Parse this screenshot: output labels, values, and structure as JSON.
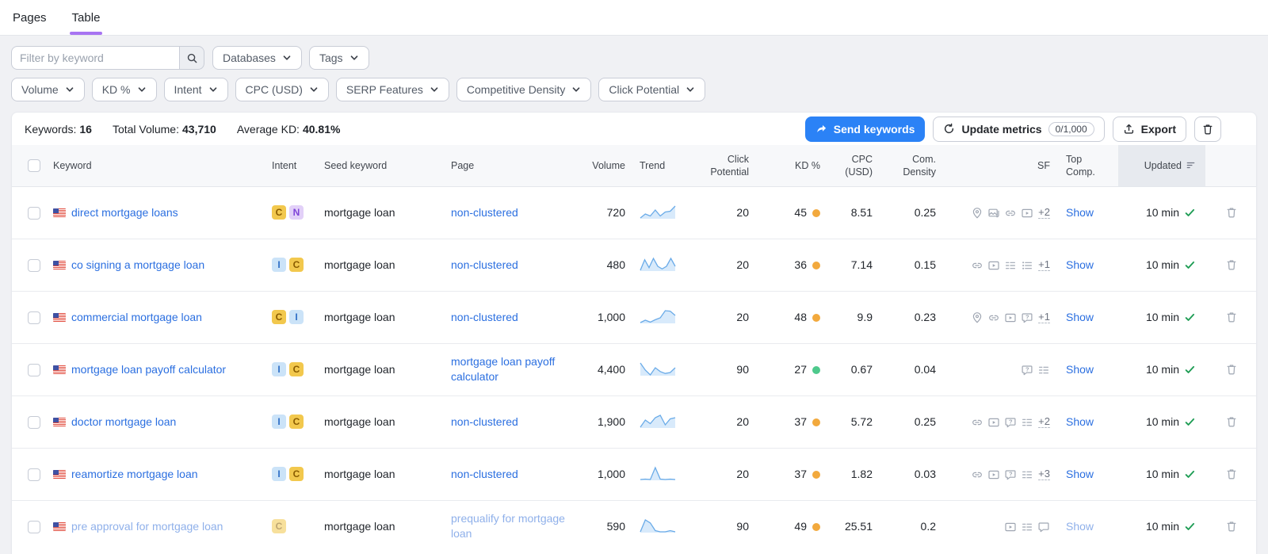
{
  "tabs": {
    "items": [
      {
        "label": "Pages",
        "active": false
      },
      {
        "label": "Table",
        "active": true
      }
    ]
  },
  "filters": {
    "search_placeholder": "Filter by keyword",
    "top_chips": [
      "Databases",
      "Tags"
    ],
    "metric_chips": [
      "Volume",
      "KD %",
      "Intent",
      "CPC (USD)",
      "SERP Features",
      "Competitive Density",
      "Click Potential"
    ]
  },
  "summary": {
    "keywords_label": "Keywords:",
    "keywords_value": "16",
    "total_volume_label": "Total Volume:",
    "total_volume_value": "43,710",
    "average_kd_label": "Average KD:",
    "average_kd_value": "40.81%"
  },
  "actions": {
    "send_keywords": "Send keywords",
    "update_metrics": "Update metrics",
    "update_quota": "0/1,000",
    "export": "Export"
  },
  "table": {
    "columns": [
      "Keyword",
      "Intent",
      "Seed keyword",
      "Page",
      "Volume",
      "Trend",
      "Click Potential",
      "KD %",
      "CPC (USD)",
      "Com. Density",
      "SF",
      "Top Comp.",
      "Updated"
    ],
    "sorted_column": "Updated",
    "rows": [
      {
        "keyword": "direct mortgage loans",
        "flag": "us",
        "intents": [
          {
            "label": "C",
            "type": "commercial"
          },
          {
            "label": "N",
            "type": "navigational"
          }
        ],
        "seed": "mortgage loan",
        "page": "non-clustered",
        "volume": "720",
        "trend": [
          4.5,
          5.5,
          5,
          6.5,
          5,
          6,
          6.2,
          7.5
        ],
        "click_potential": "20",
        "kd": "45",
        "kd_level": "medium",
        "cpc": "8.51",
        "density": "0.25",
        "sf_icons": [
          "local-pack",
          "image",
          "link",
          "video"
        ],
        "sf_more": "+2",
        "top_comp": "Show",
        "updated": "10 min",
        "dim": false
      },
      {
        "keyword": "co signing a mortgage loan",
        "flag": "us",
        "intents": [
          {
            "label": "I",
            "type": "informational"
          },
          {
            "label": "C",
            "type": "commercial"
          }
        ],
        "seed": "mortgage loan",
        "page": "non-clustered",
        "volume": "480",
        "trend": [
          3,
          7,
          4,
          7.5,
          4.5,
          3.5,
          4.5,
          7.5,
          4.5
        ],
        "click_potential": "20",
        "kd": "36",
        "kd_level": "medium",
        "cpc": "7.14",
        "density": "0.15",
        "sf_icons": [
          "link",
          "video",
          "sitelinks",
          "list"
        ],
        "sf_more": "+1",
        "top_comp": "Show",
        "updated": "10 min",
        "dim": false
      },
      {
        "keyword": "commercial mortgage loan",
        "flag": "us",
        "intents": [
          {
            "label": "C",
            "type": "commercial"
          },
          {
            "label": "I",
            "type": "informational"
          }
        ],
        "seed": "mortgage loan",
        "page": "non-clustered",
        "volume": "1,000",
        "trend": [
          3,
          4,
          3.2,
          4.2,
          5,
          8,
          7.8,
          6
        ],
        "click_potential": "20",
        "kd": "48",
        "kd_level": "medium",
        "cpc": "9.9",
        "density": "0.23",
        "sf_icons": [
          "local-pack",
          "link",
          "video",
          "faq"
        ],
        "sf_more": "+1",
        "top_comp": "Show",
        "updated": "10 min",
        "dim": false
      },
      {
        "keyword": "mortgage loan payoff calculator",
        "flag": "us",
        "intents": [
          {
            "label": "I",
            "type": "informational"
          },
          {
            "label": "C",
            "type": "commercial"
          }
        ],
        "seed": "mortgage loan",
        "page": "mortgage loan payoff calculator",
        "volume": "4,400",
        "trend": [
          6,
          4.5,
          3.5,
          5,
          4.2,
          3.8,
          4,
          5
        ],
        "click_potential": "90",
        "kd": "27",
        "kd_level": "easy",
        "cpc": "0.67",
        "density": "0.04",
        "sf_icons": [
          "faq",
          "sitelinks"
        ],
        "sf_more": "",
        "top_comp": "Show",
        "updated": "10 min",
        "dim": false
      },
      {
        "keyword": "doctor mortgage loan",
        "flag": "us",
        "intents": [
          {
            "label": "I",
            "type": "informational"
          },
          {
            "label": "C",
            "type": "commercial"
          }
        ],
        "seed": "mortgage loan",
        "page": "non-clustered",
        "volume": "1,900",
        "trend": [
          3,
          6,
          4.5,
          7,
          8,
          4,
          6.5,
          7
        ],
        "click_potential": "20",
        "kd": "37",
        "kd_level": "medium",
        "cpc": "5.72",
        "density": "0.25",
        "sf_icons": [
          "link",
          "video",
          "faq",
          "sitelinks"
        ],
        "sf_more": "+2",
        "top_comp": "Show",
        "updated": "10 min",
        "dim": false
      },
      {
        "keyword": "reamortize mortgage loan",
        "flag": "us",
        "intents": [
          {
            "label": "I",
            "type": "informational"
          },
          {
            "label": "C",
            "type": "commercial"
          }
        ],
        "seed": "mortgage loan",
        "page": "non-clustered",
        "volume": "1,000",
        "trend": [
          2,
          2.2,
          2,
          8,
          2.2,
          2,
          2.2,
          2
        ],
        "click_potential": "20",
        "kd": "37",
        "kd_level": "medium",
        "cpc": "1.82",
        "density": "0.03",
        "sf_icons": [
          "link",
          "video",
          "faq",
          "sitelinks"
        ],
        "sf_more": "+3",
        "top_comp": "Show",
        "updated": "10 min",
        "dim": false
      },
      {
        "keyword": "pre approval for mortgage loan",
        "flag": "us",
        "intents": [
          {
            "label": "C",
            "type": "commercial"
          }
        ],
        "seed": "mortgage loan",
        "page": "prequalify for mortgage loan",
        "volume": "590",
        "trend": [
          3,
          5,
          4.5,
          3.2,
          3,
          3,
          3.2,
          3
        ],
        "click_potential": "90",
        "kd": "49",
        "kd_level": "medium",
        "cpc": "25.51",
        "density": "0.2",
        "sf_icons": [
          "video",
          "sitelinks",
          "bubble"
        ],
        "sf_more": "",
        "top_comp": "Show",
        "updated": "10 min",
        "dim": true
      }
    ]
  },
  "colors": {
    "accent_purple": "#a774f2",
    "link_blue": "#2b6fe0",
    "primary_button_blue": "#2b82f6",
    "kd_medium": "#f2a93d",
    "kd_easy": "#4ec98c",
    "updated_check_green": "#1f9d55",
    "badge_commercial_bg": "#f2c84d",
    "badge_informational_bg": "#cbe3f8",
    "badge_navigational_bg": "#e2d0f8"
  }
}
